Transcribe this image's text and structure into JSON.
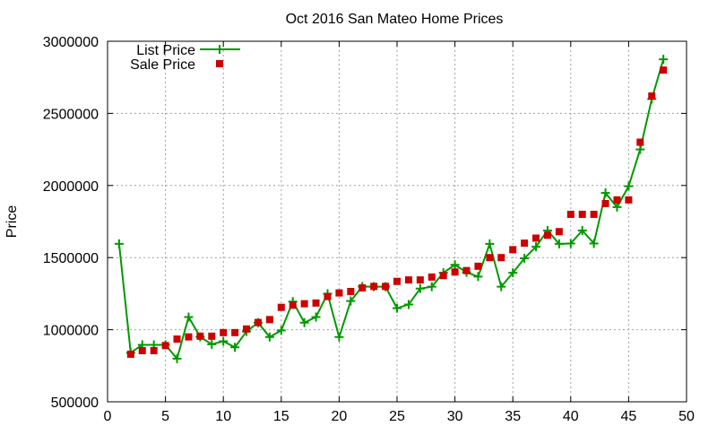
{
  "chart_data": {
    "type": "line",
    "title": "Oct 2016 San Mateo Home Prices",
    "xlabel": "",
    "ylabel": "Price",
    "xlim": [
      0,
      50
    ],
    "ylim": [
      500000,
      3000000
    ],
    "x_ticks": [
      0,
      5,
      10,
      15,
      20,
      25,
      30,
      35,
      40,
      45,
      50
    ],
    "y_ticks": [
      500000,
      1000000,
      1500000,
      2000000,
      2500000,
      3000000
    ],
    "grid": true,
    "legend_position": "top-left",
    "series": [
      {
        "name": "List Price",
        "style": "line+cross",
        "color": "#009900",
        "x": [
          1,
          2,
          3,
          4,
          5,
          6,
          7,
          8,
          9,
          10,
          11,
          12,
          13,
          14,
          15,
          16,
          17,
          18,
          19,
          20,
          21,
          22,
          23,
          24,
          25,
          26,
          27,
          28,
          29,
          30,
          31,
          32,
          33,
          34,
          35,
          36,
          37,
          38,
          39,
          40,
          41,
          42,
          43,
          44,
          45,
          46,
          47,
          48
        ],
        "y": [
          1595000,
          840000,
          895000,
          895000,
          895000,
          799000,
          1088000,
          950000,
          899000,
          920000,
          878000,
          988000,
          1049000,
          949000,
          995000,
          1195000,
          1049000,
          1088000,
          1249000,
          949000,
          1199000,
          1299000,
          1298000,
          1298000,
          1149000,
          1175000,
          1285000,
          1298000,
          1395000,
          1450000,
          1398000,
          1368000,
          1595000,
          1298000,
          1395000,
          1495000,
          1575000,
          1688000,
          1595000,
          1598000,
          1688000,
          1598000,
          1948000,
          1850000,
          1995000,
          2250000,
          2600000,
          2875000
        ]
      },
      {
        "name": "Sale Price",
        "style": "square",
        "color": "#cc0000",
        "x": [
          2,
          3,
          4,
          5,
          6,
          7,
          8,
          9,
          10,
          11,
          12,
          13,
          14,
          15,
          16,
          17,
          18,
          19,
          20,
          21,
          22,
          23,
          24,
          25,
          26,
          27,
          28,
          29,
          30,
          31,
          32,
          33,
          34,
          35,
          36,
          37,
          38,
          39,
          40,
          41,
          42,
          43,
          44,
          45,
          46,
          47,
          48
        ],
        "y": [
          830000,
          855000,
          855000,
          890000,
          935000,
          950000,
          955000,
          955000,
          980000,
          980000,
          1005000,
          1050000,
          1070000,
          1155000,
          1170000,
          1180000,
          1185000,
          1230000,
          1255000,
          1265000,
          1290000,
          1300000,
          1300000,
          1335000,
          1345000,
          1345000,
          1365000,
          1375000,
          1400000,
          1410000,
          1440000,
          1500000,
          1500000,
          1555000,
          1600000,
          1635000,
          1655000,
          1680000,
          1800000,
          1800000,
          1800000,
          1875000,
          1900000,
          1900000,
          2300000,
          2620000,
          2800000
        ]
      }
    ]
  }
}
